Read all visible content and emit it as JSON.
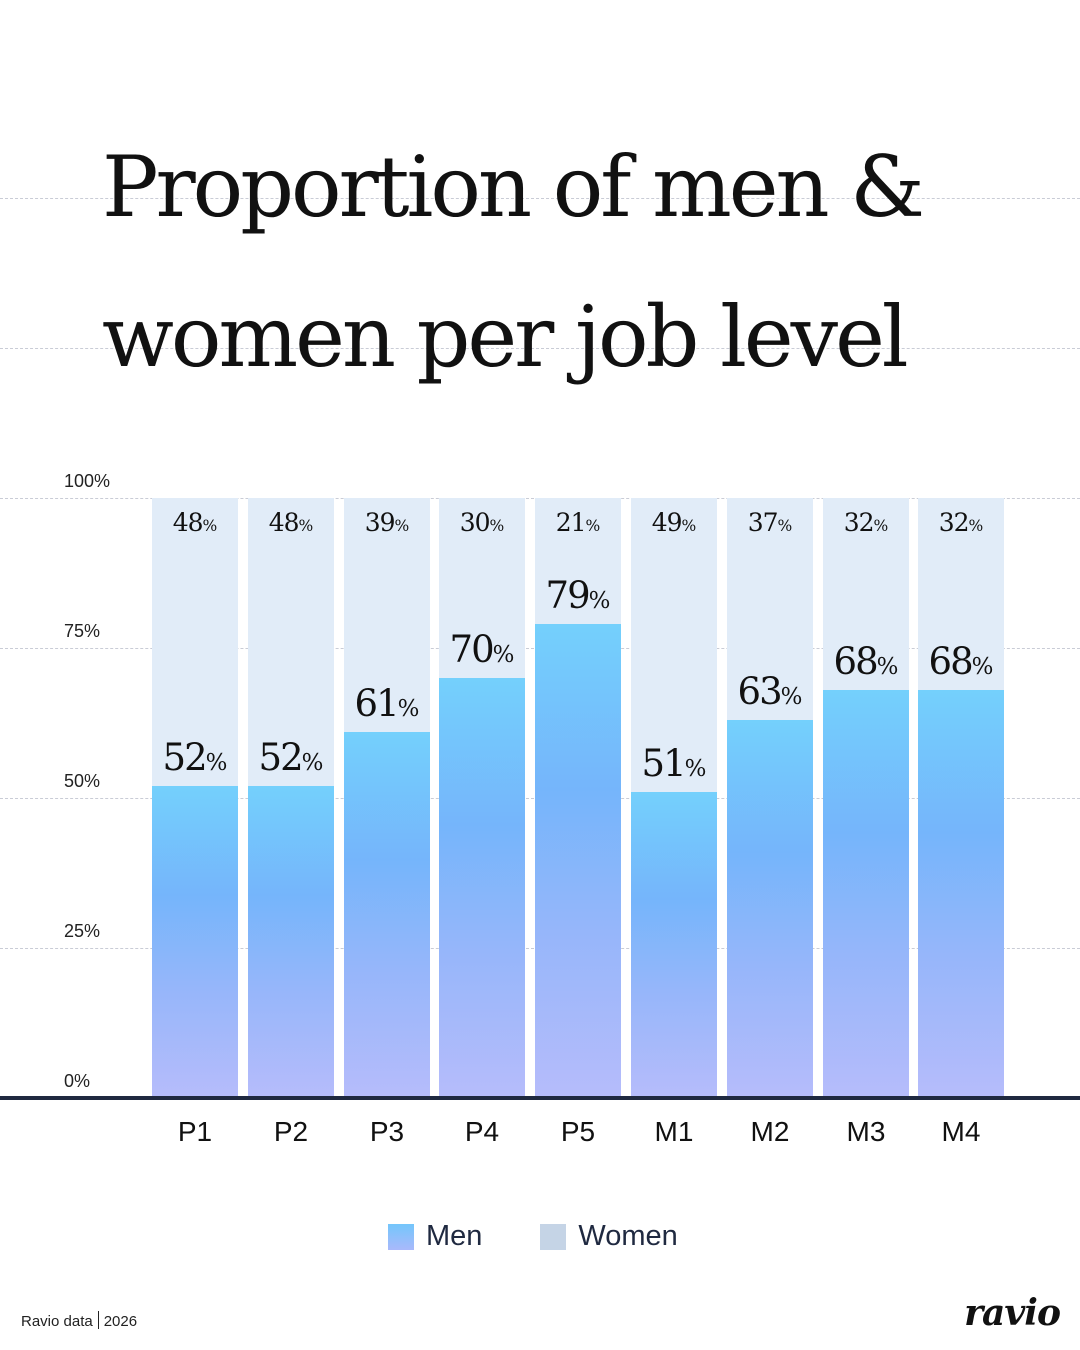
{
  "title": {
    "line1": "Proportion of men &",
    "line2": "women per job level"
  },
  "y_ticks": [
    "100%",
    "75%",
    "50%",
    "25%",
    "0%"
  ],
  "bars": [
    {
      "label": "P1",
      "men": 52,
      "women": 48
    },
    {
      "label": "P2",
      "men": 52,
      "women": 48
    },
    {
      "label": "P3",
      "men": 61,
      "women": 39
    },
    {
      "label": "P4",
      "men": 70,
      "women": 30
    },
    {
      "label": "P5",
      "men": 79,
      "women": 21
    },
    {
      "label": "M1",
      "men": 51,
      "women": 49
    },
    {
      "label": "M2",
      "men": 63,
      "women": 37
    },
    {
      "label": "M3",
      "men": 68,
      "women": 32
    },
    {
      "label": "M4",
      "men": 68,
      "women": 32
    }
  ],
  "legend": {
    "men": "Men",
    "women": "Women"
  },
  "footer": {
    "source": "Ravio data",
    "year": "2026",
    "logo": "ravio"
  },
  "colors": {
    "men_top": "#74d0fc",
    "men_bottom": "#b6bcfb",
    "women": "#e1ecf8",
    "legend_women": "#c5d4e6",
    "axis": "#1f2940"
  },
  "chart_data": {
    "type": "bar",
    "stacked": true,
    "title": "Proportion of men & women per job level",
    "categories": [
      "P1",
      "P2",
      "P3",
      "P4",
      "P5",
      "M1",
      "M2",
      "M3",
      "M4"
    ],
    "series": [
      {
        "name": "Men",
        "values": [
          52,
          52,
          61,
          70,
          79,
          51,
          63,
          68,
          68
        ]
      },
      {
        "name": "Women",
        "values": [
          48,
          48,
          39,
          30,
          21,
          49,
          37,
          32,
          32
        ]
      }
    ],
    "xlabel": "",
    "ylabel": "",
    "ylim": [
      0,
      100
    ],
    "yticks": [
      "0%",
      "25%",
      "50%",
      "75%",
      "100%"
    ],
    "grid": true,
    "legend_position": "bottom",
    "source": "Ravio data | 2026"
  }
}
